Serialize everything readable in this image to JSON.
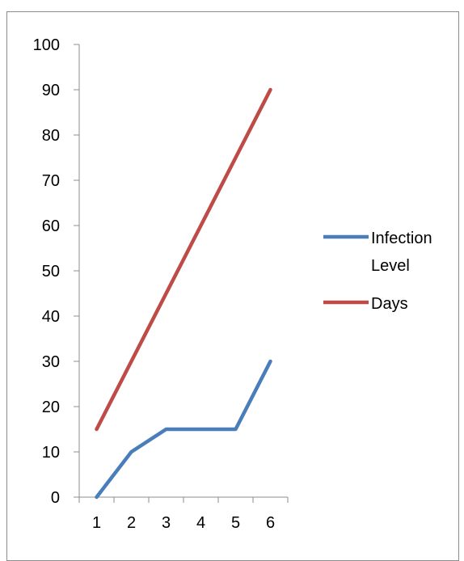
{
  "chart_data": {
    "type": "line",
    "title": "",
    "xlabel": "",
    "ylabel": "",
    "categories": [
      "1",
      "2",
      "3",
      "4",
      "5",
      "6"
    ],
    "ylim": [
      0,
      100
    ],
    "yticks": [
      0,
      10,
      20,
      30,
      40,
      50,
      60,
      70,
      80,
      90,
      100
    ],
    "grid": false,
    "legend_position": "right",
    "series": [
      {
        "name": "Infection Level",
        "legend_lines": [
          "Infection",
          "Level"
        ],
        "color": "#4a7ebb",
        "values": [
          0,
          10,
          15,
          15,
          15,
          30
        ]
      },
      {
        "name": "Days",
        "legend_lines": [
          "Days"
        ],
        "color": "#be4b48",
        "values": [
          15,
          30,
          45,
          60,
          75,
          90
        ]
      }
    ]
  }
}
